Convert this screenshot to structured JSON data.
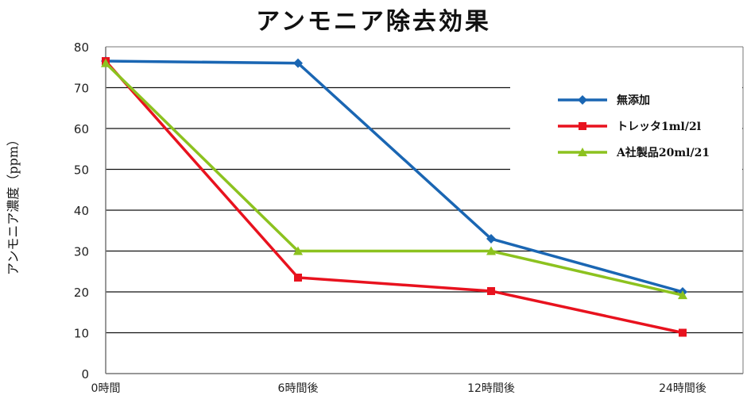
{
  "chart_data": {
    "type": "line",
    "title": "アンモニア除去効果",
    "xlabel": "",
    "ylabel": "アンモニア濃度（ppm）",
    "categories": [
      "0時間",
      "6時間後",
      "12時間後",
      "24時間後"
    ],
    "ylim": [
      0,
      80
    ],
    "yticks": [
      0,
      10,
      20,
      30,
      40,
      50,
      60,
      70,
      80
    ],
    "grid": true,
    "legend_position": "upper right (inside plot)",
    "series": [
      {
        "name": "無添加",
        "color": "#1a66b3",
        "marker": "diamond",
        "values": [
          76.5,
          76,
          33,
          20
        ]
      },
      {
        "name": "トレッタ1ml/2l",
        "color": "#e8121e",
        "marker": "square",
        "values": [
          76.5,
          23.5,
          20.2,
          10
        ]
      },
      {
        "name": "A社製品20ml/21",
        "color": "#8cc21f",
        "marker": "triangle",
        "values": [
          76,
          30,
          30,
          19.2
        ]
      }
    ]
  }
}
